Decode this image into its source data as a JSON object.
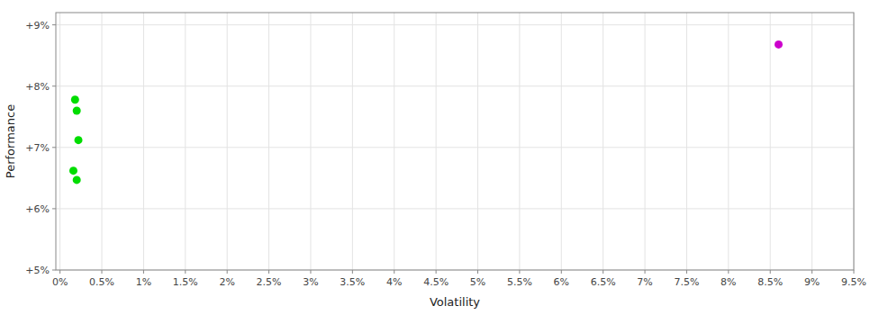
{
  "chart_data": {
    "type": "scatter",
    "xlabel": "Volatility",
    "ylabel": "Performance",
    "xlim": [
      -0.05,
      9.5
    ],
    "ylim": [
      5.0,
      9.2
    ],
    "xticks": [
      {
        "value": 0,
        "label": "0%"
      },
      {
        "value": 0.5,
        "label": "0.5%"
      },
      {
        "value": 1.0,
        "label": "1%"
      },
      {
        "value": 1.5,
        "label": "1.5%"
      },
      {
        "value": 2.0,
        "label": "2%"
      },
      {
        "value": 2.5,
        "label": "2.5%"
      },
      {
        "value": 3.0,
        "label": "3%"
      },
      {
        "value": 3.5,
        "label": "3.5%"
      },
      {
        "value": 4.0,
        "label": "4%"
      },
      {
        "value": 4.5,
        "label": "4.5%"
      },
      {
        "value": 5.0,
        "label": "5%"
      },
      {
        "value": 5.5,
        "label": "5.5%"
      },
      {
        "value": 6.0,
        "label": "6%"
      },
      {
        "value": 6.5,
        "label": "6.5%"
      },
      {
        "value": 7.0,
        "label": "7%"
      },
      {
        "value": 7.5,
        "label": "7.5%"
      },
      {
        "value": 8.0,
        "label": "8%"
      },
      {
        "value": 8.5,
        "label": "8.5%"
      },
      {
        "value": 9.0,
        "label": "9%"
      },
      {
        "value": 9.5,
        "label": "9.5%"
      }
    ],
    "yticks": [
      {
        "value": 5,
        "label": "+5%"
      },
      {
        "value": 6,
        "label": "+6%"
      },
      {
        "value": 7,
        "label": "+7%"
      },
      {
        "value": 8,
        "label": "+8%"
      },
      {
        "value": 9,
        "label": "+9%"
      }
    ],
    "grid": true,
    "series": [
      {
        "color": "#00dd00",
        "x": [
          0.18,
          0.2,
          0.22,
          0.16,
          0.2
        ],
        "values": [
          7.78,
          7.6,
          7.12,
          6.62,
          6.47
        ]
      },
      {
        "color": "#cc00cc",
        "x": [
          8.6
        ],
        "values": [
          8.68
        ]
      }
    ]
  }
}
